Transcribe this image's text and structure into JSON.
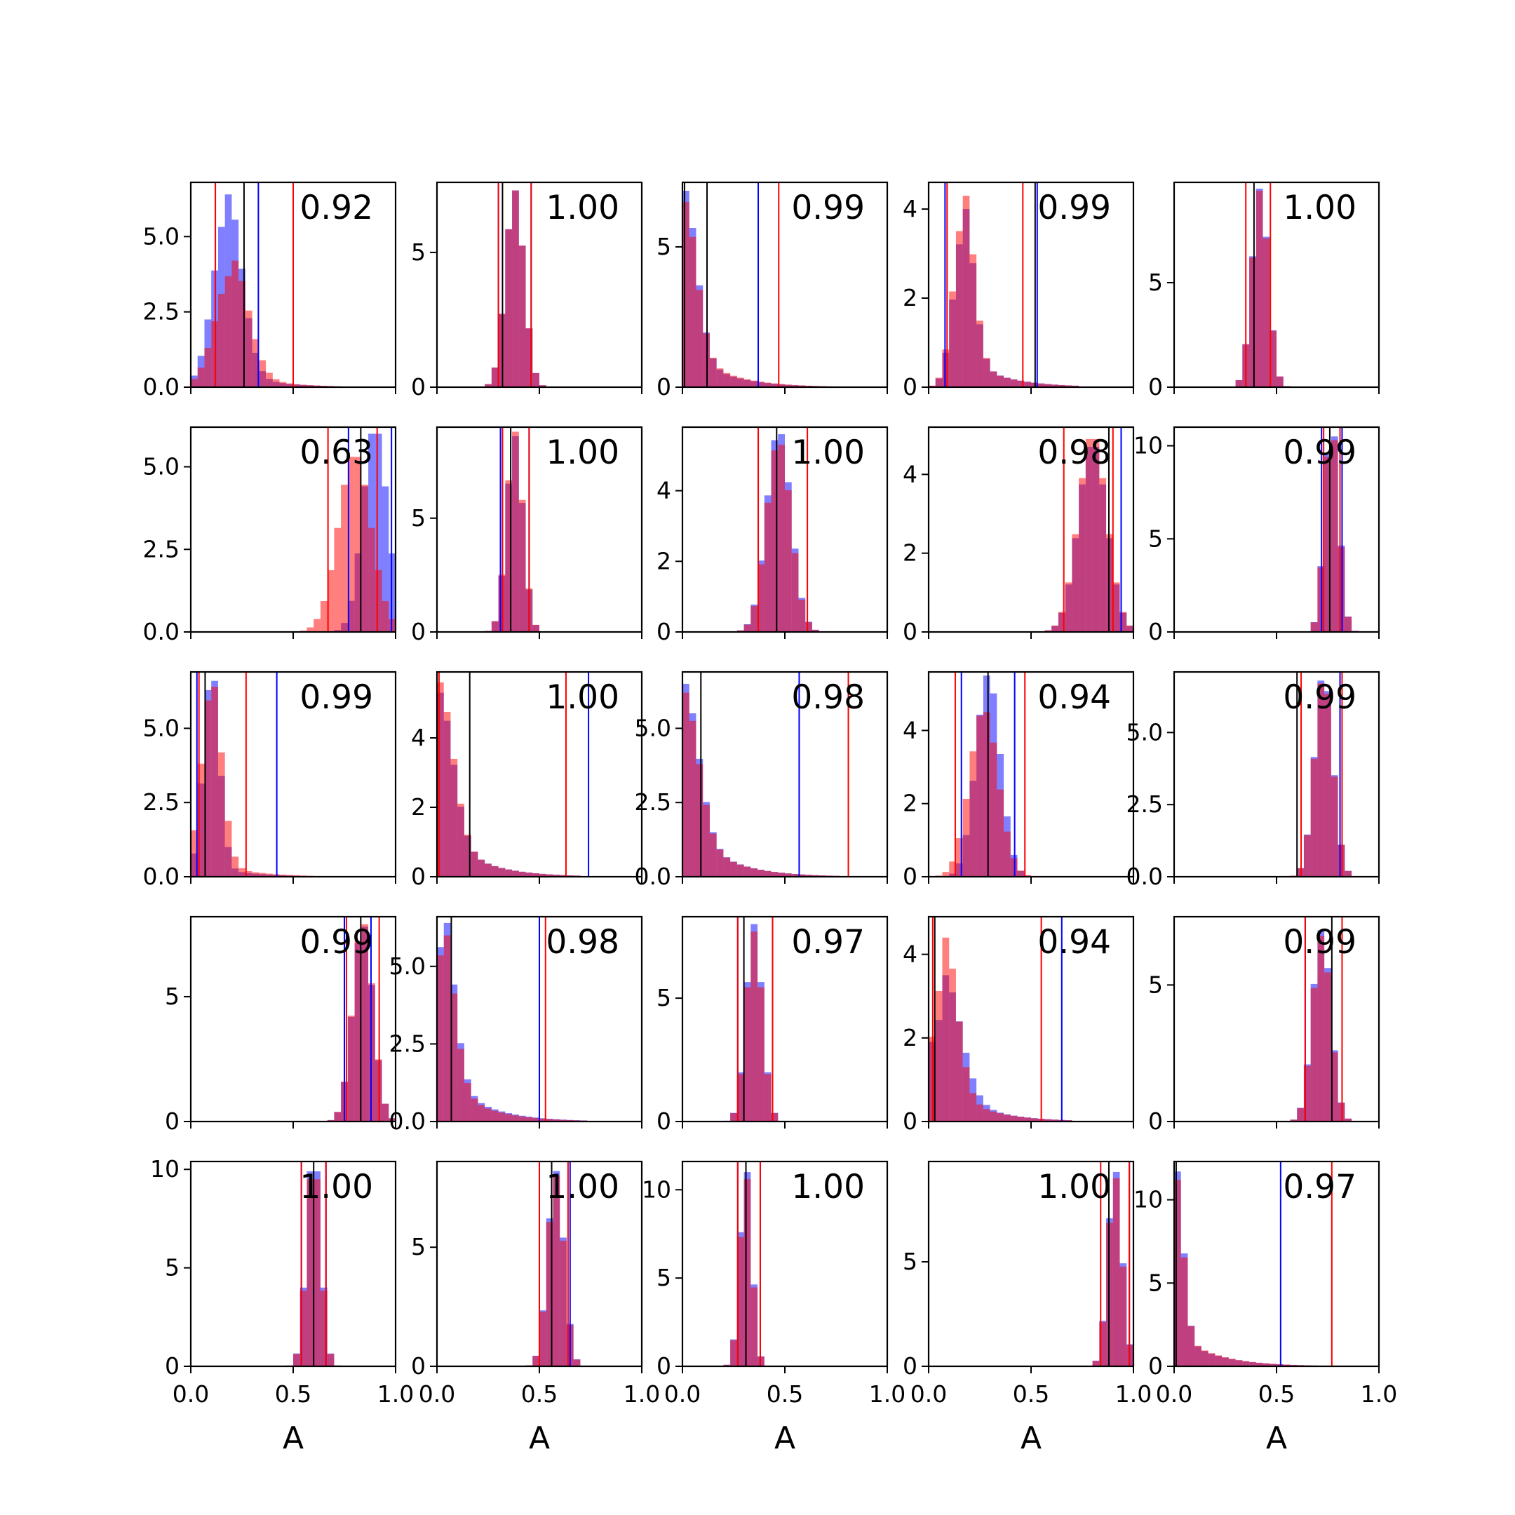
{
  "figure": {
    "background": "#ffffff"
  },
  "colors": {
    "blue": "#0000ff",
    "red": "#ff0000",
    "median": "#000000",
    "blue_fill_opacity": 0.5,
    "red_fill_opacity": 0.5
  },
  "chart_data": {
    "type": "histogram_grid",
    "rows": 5,
    "cols": 5,
    "xlabel": "A",
    "xlim": [
      0,
      1
    ],
    "xticks": [
      "0.0",
      "0.5",
      "1.0"
    ],
    "panels": [
      {
        "label": "0.92",
        "ylim": [
          0,
          6.8
        ],
        "yticks": [
          "0.0",
          "2.5",
          "5.0"
        ],
        "ytick_values": [
          0,
          2.5,
          5
        ],
        "blue": {
          "mode": 0.18,
          "sd": 0.07,
          "tail": 0.1,
          "peak": 6.4
        },
        "red": {
          "mode": 0.2,
          "sd": 0.08,
          "tail": 0.15,
          "peak": 4.2
        },
        "lines": {
          "blue": [
            0.12,
            0.33
          ],
          "red": [
            0.12,
            0.5
          ],
          "median": [
            0.26
          ]
        }
      },
      {
        "label": "1.00",
        "ylim": [
          0,
          7.6
        ],
        "yticks": [
          "0",
          "5"
        ],
        "ytick_values": [
          0,
          5
        ],
        "blue": {
          "mode": 0.38,
          "sd": 0.045,
          "tail": 0,
          "peak": 7.3
        },
        "red": {
          "mode": 0.38,
          "sd": 0.045,
          "tail": 0,
          "peak": 7.3
        },
        "lines": {
          "blue": [
            0.3,
            0.46
          ],
          "red": [
            0.3,
            0.46
          ],
          "median": [
            0.32
          ]
        }
      },
      {
        "label": "0.99",
        "ylim": [
          0,
          7.3
        ],
        "yticks": [
          "0",
          "5"
        ],
        "ytick_values": [
          0,
          5
        ],
        "blue": {
          "mode": 0.01,
          "sd": 0.06,
          "tail": 0.25,
          "peak": 7.0
        },
        "red": {
          "mode": 0.01,
          "sd": 0.06,
          "tail": 0.3,
          "peak": 6.6
        },
        "lines": {
          "blue": [
            0.37
          ],
          "red": [
            0.47
          ],
          "median": [
            0.01,
            0.12
          ]
        }
      },
      {
        "label": "0.99",
        "ylim": [
          0,
          4.6
        ],
        "yticks": [
          "0",
          "2",
          "4"
        ],
        "ytick_values": [
          0,
          2,
          4
        ],
        "blue": {
          "mode": 0.17,
          "sd": 0.05,
          "tail": 0.2,
          "peak": 4.0
        },
        "red": {
          "mode": 0.17,
          "sd": 0.05,
          "tail": 0.18,
          "peak": 4.3
        },
        "lines": {
          "blue": [
            0.08,
            0.53
          ],
          "red": [
            0.09,
            0.46
          ],
          "median": [
            0.52
          ]
        }
      },
      {
        "label": "1.00",
        "ylim": [
          0,
          9.8
        ],
        "yticks": [
          "0",
          "5"
        ],
        "ytick_values": [
          0,
          5
        ],
        "blue": {
          "mode": 0.42,
          "sd": 0.04,
          "tail": 0,
          "peak": 9.5
        },
        "red": {
          "mode": 0.42,
          "sd": 0.04,
          "tail": 0,
          "peak": 9.4
        },
        "lines": {
          "blue": [],
          "red": [
            0.35,
            0.47
          ],
          "median": [
            0.39
          ]
        }
      },
      {
        "label": "0.63",
        "ylim": [
          0,
          6.2
        ],
        "yticks": [
          "0.0",
          "2.5",
          "5.0"
        ],
        "ytick_values": [
          0,
          2.5,
          5
        ],
        "blue": {
          "mode": 0.9,
          "sd": 0.06,
          "tail": 0,
          "peak": 6.0
        },
        "red": {
          "mode": 0.8,
          "sd": 0.08,
          "tail": 0,
          "peak": 5.3
        },
        "lines": {
          "blue": [
            0.77,
            0.98
          ],
          "red": [
            0.67,
            0.91
          ],
          "median": [
            0.83
          ]
        }
      },
      {
        "label": "1.00",
        "ylim": [
          0,
          9.0
        ],
        "yticks": [
          "0",
          "5"
        ],
        "ytick_values": [
          0,
          5
        ],
        "blue": {
          "mode": 0.38,
          "sd": 0.04,
          "tail": 0,
          "peak": 8.6
        },
        "red": {
          "mode": 0.38,
          "sd": 0.04,
          "tail": 0,
          "peak": 8.8
        },
        "lines": {
          "blue": [
            0.31,
            0.45
          ],
          "red": [
            0.32,
            0.45
          ],
          "median": [
            0.36
          ]
        }
      },
      {
        "label": "1.00",
        "ylim": [
          0,
          5.8
        ],
        "yticks": [
          "0",
          "2",
          "4"
        ],
        "ytick_values": [
          0,
          2,
          4
        ],
        "blue": {
          "mode": 0.47,
          "sd": 0.06,
          "tail": 0,
          "peak": 5.6
        },
        "red": {
          "mode": 0.47,
          "sd": 0.06,
          "tail": 0,
          "peak": 5.3
        },
        "lines": {
          "blue": [
            0.37
          ],
          "red": [
            0.37,
            0.61
          ],
          "median": [
            0.46
          ]
        }
      },
      {
        "label": "0.98",
        "ylim": [
          0,
          5.2
        ],
        "yticks": [
          "0",
          "2",
          "4"
        ],
        "ytick_values": [
          0,
          2,
          4
        ],
        "blue": {
          "mode": 0.8,
          "sd": 0.07,
          "tail": 0,
          "peak": 4.7
        },
        "red": {
          "mode": 0.8,
          "sd": 0.07,
          "tail": 0,
          "peak": 4.9
        },
        "lines": {
          "blue": [
            0.94
          ],
          "red": [
            0.66,
            0.9
          ],
          "median": [
            0.88
          ]
        }
      },
      {
        "label": "0.99",
        "ylim": [
          0,
          11
        ],
        "yticks": [
          "0",
          "5",
          "10"
        ],
        "ytick_values": [
          0,
          5,
          10
        ],
        "blue": {
          "mode": 0.77,
          "sd": 0.035,
          "tail": 0,
          "peak": 10.5
        },
        "red": {
          "mode": 0.77,
          "sd": 0.035,
          "tail": 0,
          "peak": 10.3
        },
        "lines": {
          "blue": [
            0.72,
            0.82
          ],
          "red": [
            0.73,
            0.81
          ],
          "median": [
            0.76
          ]
        }
      },
      {
        "label": "0.99",
        "ylim": [
          0,
          6.9
        ],
        "yticks": [
          "0.0",
          "2.5",
          "5.0"
        ],
        "ytick_values": [
          0,
          2.5,
          5
        ],
        "blue": {
          "mode": 0.1,
          "sd": 0.04,
          "tail": 0.05,
          "peak": 6.6
        },
        "red": {
          "mode": 0.1,
          "sd": 0.05,
          "tail": 0.08,
          "peak": 6.4
        },
        "lines": {
          "blue": [
            0.03,
            0.42
          ],
          "red": [
            0.04,
            0.27
          ],
          "median": [
            0.07
          ]
        }
      },
      {
        "label": "1.00",
        "ylim": [
          0,
          5.9
        ],
        "yticks": [
          "0",
          "2",
          "4"
        ],
        "ytick_values": [
          0,
          2,
          4
        ],
        "blue": {
          "mode": 0.01,
          "sd": 0.07,
          "tail": 0.35,
          "peak": 5.3
        },
        "red": {
          "mode": 0.01,
          "sd": 0.07,
          "tail": 0.32,
          "peak": 5.6
        },
        "lines": {
          "blue": [
            0.74
          ],
          "red": [
            0.01,
            0.63
          ],
          "median": [
            0.16
          ]
        }
      },
      {
        "label": "0.98",
        "ylim": [
          0,
          6.9
        ],
        "yticks": [
          "0.0",
          "2.5",
          "5.0"
        ],
        "ytick_values": [
          0,
          2.5,
          5
        ],
        "blue": {
          "mode": 0.01,
          "sd": 0.07,
          "tail": 0.4,
          "peak": 6.5
        },
        "red": {
          "mode": 0.01,
          "sd": 0.07,
          "tail": 0.42,
          "peak": 6.2
        },
        "lines": {
          "blue": [
            0.57
          ],
          "red": [
            0.81
          ],
          "median": [
            0.09
          ]
        }
      },
      {
        "label": "0.94",
        "ylim": [
          0,
          5.6
        ],
        "yticks": [
          "0",
          "2",
          "4"
        ],
        "ytick_values": [
          0,
          2,
          4
        ],
        "blue": {
          "mode": 0.29,
          "sd": 0.06,
          "tail": 0,
          "peak": 5.5
        },
        "red": {
          "mode": 0.27,
          "sd": 0.07,
          "tail": 0,
          "peak": 4.5
        },
        "lines": {
          "blue": [
            0.16,
            0.42
          ],
          "red": [
            0.13,
            0.47
          ],
          "median": [
            0.29
          ]
        }
      },
      {
        "label": "0.99",
        "ylim": [
          0,
          7.1
        ],
        "yticks": [
          "0.0",
          "2.5",
          "5.0"
        ],
        "ytick_values": [
          0,
          2.5,
          5
        ],
        "blue": {
          "mode": 0.73,
          "sd": 0.045,
          "tail": 0,
          "peak": 6.8
        },
        "red": {
          "mode": 0.73,
          "sd": 0.045,
          "tail": 0,
          "peak": 6.7
        },
        "lines": {
          "blue": [
            0.81
          ],
          "red": [
            0.62,
            0.82
          ],
          "median": [
            0.6
          ]
        }
      },
      {
        "label": "0.99",
        "ylim": [
          0,
          8.2
        ],
        "yticks": [
          "0",
          "5"
        ],
        "ytick_values": [
          0,
          5
        ],
        "blue": {
          "mode": 0.84,
          "sd": 0.05,
          "tail": 0,
          "peak": 7.8
        },
        "red": {
          "mode": 0.84,
          "sd": 0.05,
          "tail": 0,
          "peak": 7.9
        },
        "lines": {
          "blue": [
            0.75,
            0.88
          ],
          "red": [
            0.76,
            0.92
          ],
          "median": [
            0.83
          ]
        }
      },
      {
        "label": "0.98",
        "ylim": [
          0,
          6.6
        ],
        "yticks": [
          "0.0",
          "2.5",
          "5.0"
        ],
        "ytick_values": [
          0,
          2.5,
          5
        ],
        "blue": {
          "mode": 0.02,
          "sd": 0.06,
          "tail": 0.3,
          "peak": 6.4
        },
        "red": {
          "mode": 0.02,
          "sd": 0.06,
          "tail": 0.28,
          "peak": 6.0
        },
        "lines": {
          "blue": [
            0.5
          ],
          "red": [
            0.53
          ],
          "median": [
            0.07
          ]
        }
      },
      {
        "label": "0.97",
        "ylim": [
          0,
          8.3
        ],
        "yticks": [
          "0",
          "5"
        ],
        "ytick_values": [
          0,
          5
        ],
        "blue": {
          "mode": 0.35,
          "sd": 0.04,
          "tail": 0,
          "peak": 8.0
        },
        "red": {
          "mode": 0.35,
          "sd": 0.04,
          "tail": 0,
          "peak": 7.7
        },
        "lines": {
          "blue": [
            0.27,
            0.44
          ],
          "red": [
            0.27,
            0.44
          ],
          "median": [
            0.3
          ]
        }
      },
      {
        "label": "0.94",
        "ylim": [
          0,
          4.9
        ],
        "yticks": [
          "0",
          "2",
          "4"
        ],
        "ytick_values": [
          0,
          2,
          4
        ],
        "blue": {
          "mode": 0.08,
          "sd": 0.08,
          "tail": 0.35,
          "peak": 3.5
        },
        "red": {
          "mode": 0.08,
          "sd": 0.06,
          "tail": 0.25,
          "peak": 4.4
        },
        "lines": {
          "blue": [
            0.65
          ],
          "red": [
            0.02,
            0.55
          ],
          "median": [
            0.03
          ]
        }
      },
      {
        "label": "0.99",
        "ylim": [
          0,
          7.5
        ],
        "yticks": [
          "0",
          "5"
        ],
        "ytick_values": [
          0,
          5
        ],
        "blue": {
          "mode": 0.72,
          "sd": 0.045,
          "tail": 0,
          "peak": 7.0
        },
        "red": {
          "mode": 0.72,
          "sd": 0.045,
          "tail": 0,
          "peak": 6.8
        },
        "lines": {
          "blue": [
            0.64
          ],
          "red": [
            0.64,
            0.82
          ],
          "median": [
            0.77
          ]
        }
      },
      {
        "label": "1.00",
        "ylim": [
          0,
          10.4
        ],
        "yticks": [
          "0",
          "5",
          "10"
        ],
        "ytick_values": [
          0,
          5,
          10
        ],
        "blue": {
          "mode": 0.6,
          "sd": 0.035,
          "tail": 0,
          "peak": 9.9
        },
        "red": {
          "mode": 0.6,
          "sd": 0.035,
          "tail": 0,
          "peak": 9.5
        },
        "lines": {
          "blue": [
            0.54,
            0.66
          ],
          "red": [
            0.54,
            0.66
          ],
          "median": [
            0.6
          ]
        }
      },
      {
        "label": "1.00",
        "ylim": [
          0,
          8.6
        ],
        "yticks": [
          "0",
          "5"
        ],
        "ytick_values": [
          0,
          5
        ],
        "blue": {
          "mode": 0.58,
          "sd": 0.04,
          "tail": 0,
          "peak": 8.2
        },
        "red": {
          "mode": 0.58,
          "sd": 0.04,
          "tail": 0,
          "peak": 8.0
        },
        "lines": {
          "blue": [
            0.5,
            0.65
          ],
          "red": [
            0.5,
            0.64
          ],
          "median": [
            0.56
          ]
        }
      },
      {
        "label": "1.00",
        "ylim": [
          0,
          11.6
        ],
        "yticks": [
          "0",
          "5",
          "10"
        ],
        "ytick_values": [
          0,
          5,
          10
        ],
        "blue": {
          "mode": 0.31,
          "sd": 0.03,
          "tail": 0,
          "peak": 11.0
        },
        "red": {
          "mode": 0.31,
          "sd": 0.03,
          "tail": 0,
          "peak": 10.6
        },
        "lines": {
          "blue": [
            0.27,
            0.38
          ],
          "red": [
            0.27,
            0.38
          ],
          "median": [
            0.31
          ]
        }
      },
      {
        "label": "1.00",
        "ylim": [
          0,
          9.8
        ],
        "yticks": [
          "0",
          "5"
        ],
        "ytick_values": [
          0,
          5
        ],
        "blue": {
          "mode": 0.91,
          "sd": 0.035,
          "tail": 0,
          "peak": 9.3
        },
        "red": {
          "mode": 0.91,
          "sd": 0.035,
          "tail": 0,
          "peak": 9.0
        },
        "lines": {
          "blue": [
            0.98
          ],
          "red": [
            0.84,
            0.98
          ],
          "median": [
            0.88
          ]
        }
      },
      {
        "label": "0.97",
        "ylim": [
          0,
          12.3
        ],
        "yticks": [
          "0",
          "5",
          "10"
        ],
        "ytick_values": [
          0,
          5,
          10
        ],
        "blue": {
          "mode": 0.01,
          "sd": 0.035,
          "tail": 0.2,
          "peak": 11.7
        },
        "red": {
          "mode": 0.01,
          "sd": 0.035,
          "tail": 0.22,
          "peak": 11.2
        },
        "lines": {
          "blue": [
            0.52
          ],
          "red": [
            0.77
          ],
          "median": [
            0.01
          ]
        }
      }
    ]
  }
}
